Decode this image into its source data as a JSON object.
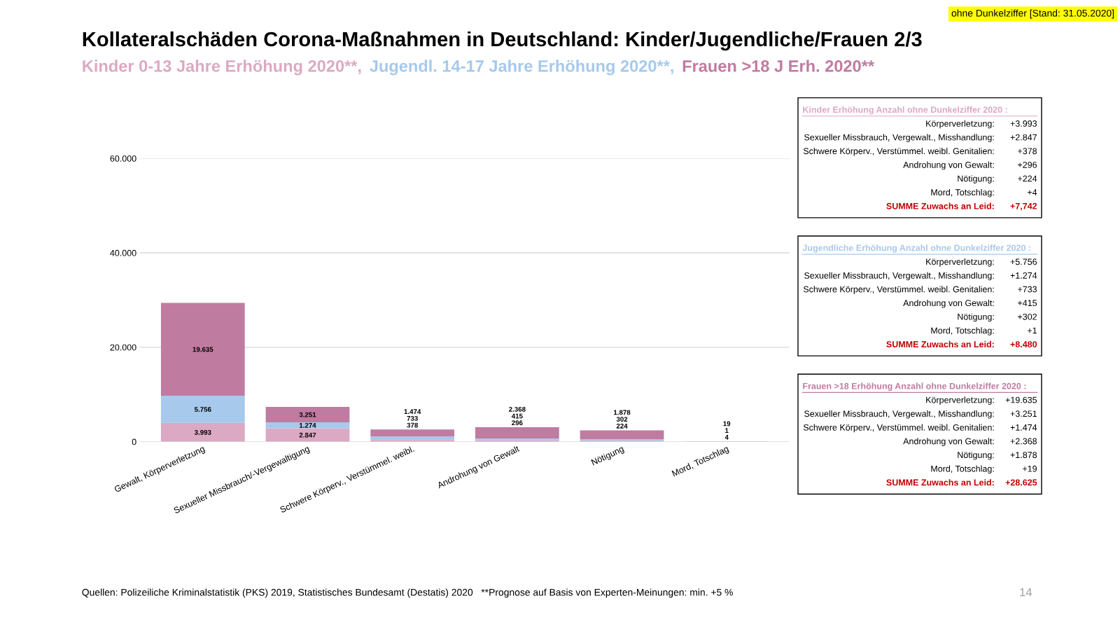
{
  "chart_data": {
    "type": "bar",
    "stacked": true,
    "title": "Kollateralschäden Corona-Maßnahmen in Deutschland: Kinder/Jugendliche/Frauen 2/3",
    "categories": [
      "Gewalt, Körperverletzung",
      "Sexueller Missbrauch/-Vergewaltigung",
      "Schwere Körperv., Verstümmel. weibl.",
      "Androhung von Gewalt",
      "Nötigung",
      "Mord, Totschlag"
    ],
    "series": [
      {
        "name": "Kinder 0-13 Jahre Erhöhung 2020**,",
        "color": "#dba9c3",
        "values": [
          3993,
          2847,
          378,
          296,
          224,
          4
        ],
        "value_labels": [
          "3.993",
          "2.847",
          "378",
          "296",
          "224",
          "4"
        ]
      },
      {
        "name": "Jugendl. 14-17 Jahre Erhöhung 2020**,",
        "color": "#a6c9ec",
        "values": [
          5756,
          1274,
          733,
          415,
          302,
          1
        ],
        "value_labels": [
          "5.756",
          "1.274",
          "733",
          "415",
          "302",
          "1"
        ]
      },
      {
        "name": "Frauen >18 J Erh. 2020**",
        "color": "#c07ba1",
        "values": [
          19635,
          3251,
          1474,
          2368,
          1878,
          19
        ],
        "value_labels": [
          "19.635",
          "3.251",
          "1.474",
          "2.368",
          "1.878",
          "19"
        ]
      }
    ],
    "ylim": [
      0,
      60000
    ],
    "yticks": [
      {
        "value": 0,
        "label": "0"
      },
      {
        "value": 20000,
        "label": "20.000"
      },
      {
        "value": 40000,
        "label": "40.000"
      },
      {
        "value": 60000,
        "label": "60.000"
      }
    ],
    "grid": "y",
    "legend": "top",
    "annotations": [
      "ohne Dunkelziffer [Stand: 31.05.2020]",
      "Kinder Erhöhung Anzahl ohne Dunkelziffer 2020 :\nKörperverletzung: +3.993\nSexueller Missbrauch, Vergewalt., Misshandlung: +2.847\nSchwere Körperv., Verstümmel. weibl. Genitalien: +378\nAndrohung von Gewalt: +296\nNötigung: +224\nMord, Totschlag: +4\nSUMME Zuwachs an Leid: +7,742",
      "Jugendliche Erhöhung Anzahl ohne Dunkelziffer 2020 :\nKörperverletzung: +5.756\nSexueller Missbrauch, Vergewalt., Misshandlung: +1.274\nSchwere Körperv., Verstümmel. weibl. Genitalien: +733\nAndrohung von Gewalt: +415\nNötigung: +302\nMord, Totschlag: +1\nSUMME Zuwachs an Leid: +8.480",
      "Frauen >18 Erhöhung Anzahl ohne Dunkelziffer 2020 :\nKörperverletzung: +19.635\nSexueller Missbrauch, Vergewalt., Misshandlung: +3.251\nSchwere Körperv., Verstümmel. weibl. Genitalien: +1.474\nAndrohung von Gewalt: +2.368\nNötigung: +1.878\nMord, Totschlag: +19\nSUMME Zuwachs an Leid: +28.625",
      "Quellen: Polizeiliche Kriminalstatistik (PKS) 2019, Statistisches Bundesamt (Destatis) 2020   **Prognose auf Basis von Experten-Meinungen: min. +5 %",
      "14"
    ]
  }
}
